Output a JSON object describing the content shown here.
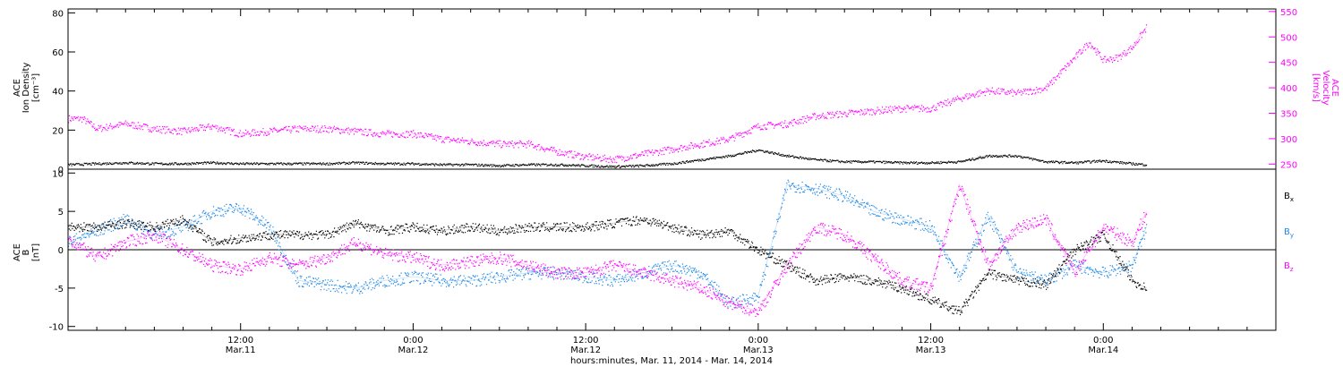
{
  "colors": {
    "density": "#000000",
    "velocity": "#ff00ff",
    "bx": "#000000",
    "by": "#1e88e5",
    "bz": "#ff00ff",
    "axis": "#000000"
  },
  "xaxis_label": "hours:minutes, Mar. 11, 2014 - Mar. 14, 2014",
  "time_ticks": [
    {
      "time": "12:00",
      "date": "Mar.11",
      "hours": 12
    },
    {
      "time": "0:00",
      "date": "Mar.12",
      "hours": 24
    },
    {
      "time": "12:00",
      "date": "Mar.12",
      "hours": 36
    },
    {
      "time": "0:00",
      "date": "Mar.13",
      "hours": 48
    },
    {
      "time": "12:00",
      "date": "Mar.13",
      "hours": 60
    },
    {
      "time": "0:00",
      "date": "Mar.14",
      "hours": 72
    }
  ],
  "chart_data": [
    {
      "type": "scatter",
      "panel": "plasma",
      "xlim": [
        0,
        84
      ],
      "x_units": "hours since Mar. 11, 2014 00:00",
      "left_axis": {
        "label_lines": [
          "ACE",
          "Ion Density",
          "[cm⁻³]"
        ],
        "ylim": [
          0,
          82
        ],
        "ticks": [
          0,
          20,
          40,
          60,
          80
        ]
      },
      "right_axis": {
        "label_lines": [
          "ACE",
          "Velocity",
          "[km/s]"
        ],
        "ylim": [
          240,
          555
        ],
        "ticks": [
          250,
          300,
          350,
          400,
          450,
          500,
          550
        ]
      },
      "series": [
        {
          "name": "Ion Density",
          "axis": "left",
          "x": [
            0,
            2,
            4,
            6,
            8,
            10,
            12,
            14,
            16,
            18,
            20,
            22,
            24,
            26,
            28,
            30,
            32,
            34,
            36,
            38,
            40,
            42,
            44,
            46,
            48,
            50,
            52,
            54,
            56,
            58,
            60,
            62,
            64,
            66,
            68,
            70,
            72,
            74,
            75
          ],
          "y": [
            2.5,
            3,
            3.5,
            3,
            3,
            3.5,
            3,
            3,
            3,
            3,
            3.5,
            3,
            3,
            2.5,
            2.5,
            2,
            2.5,
            2.5,
            2,
            1.5,
            2,
            3,
            5,
            7,
            10,
            7,
            5,
            4,
            4,
            3.5,
            3.5,
            4,
            7,
            7,
            4,
            3.5,
            4.5,
            3,
            2.5
          ]
        },
        {
          "name": "Velocity",
          "axis": "right",
          "x": [
            0,
            1,
            2,
            4,
            6,
            8,
            10,
            12,
            14,
            16,
            18,
            20,
            22,
            24,
            26,
            28,
            30,
            32,
            34,
            36,
            38,
            40,
            42,
            44,
            46,
            48,
            50,
            52,
            54,
            56,
            58,
            60,
            62,
            64,
            66,
            68,
            70,
            71,
            72,
            73,
            74,
            75
          ],
          "y": [
            340,
            340,
            320,
            330,
            320,
            315,
            325,
            310,
            315,
            320,
            320,
            315,
            310,
            310,
            300,
            295,
            290,
            290,
            275,
            265,
            260,
            270,
            280,
            290,
            300,
            325,
            330,
            345,
            350,
            355,
            360,
            360,
            380,
            395,
            390,
            400,
            460,
            490,
            455,
            460,
            480,
            520
          ]
        }
      ]
    },
    {
      "type": "scatter",
      "panel": "magnetic-field",
      "xlim": [
        0,
        84
      ],
      "x_units": "hours since Mar. 11, 2014 00:00",
      "left_axis": {
        "label_lines": [
          "ACE",
          "B",
          "[nT]"
        ],
        "ylim": [
          -10.5,
          10.5
        ],
        "ticks": [
          -10,
          -5,
          0,
          5,
          10
        ]
      },
      "zero_line": true,
      "legend_position": "right",
      "series": [
        {
          "name": "Bx",
          "sub": "x",
          "name_base": "B",
          "color_key": "bx",
          "x": [
            0,
            2,
            4,
            6,
            8,
            10,
            12,
            14,
            16,
            18,
            20,
            22,
            24,
            26,
            28,
            30,
            32,
            34,
            36,
            38,
            40,
            42,
            44,
            46,
            48,
            50,
            52,
            54,
            56,
            58,
            60,
            62,
            64,
            66,
            68,
            70,
            72,
            74,
            75
          ],
          "y": [
            3,
            3,
            3.5,
            3,
            4,
            1,
            1.5,
            2,
            2,
            2,
            3.5,
            2.5,
            3,
            2.5,
            3,
            2.5,
            3,
            3,
            3,
            3.5,
            4,
            3,
            2,
            2.5,
            0,
            -2,
            -4,
            -3.5,
            -4,
            -5,
            -6.5,
            -8,
            -3,
            -4,
            -4.5,
            0,
            2,
            -4,
            -5
          ]
        },
        {
          "name": "By",
          "sub": "y",
          "name_base": "B",
          "color_key": "by",
          "x": [
            0,
            2,
            4,
            6,
            8,
            10,
            12,
            14,
            16,
            18,
            20,
            22,
            24,
            26,
            28,
            30,
            32,
            34,
            36,
            38,
            40,
            42,
            44,
            46,
            48,
            50,
            52,
            54,
            56,
            58,
            60,
            62,
            64,
            66,
            68,
            70,
            72,
            74,
            75
          ],
          "y": [
            1,
            2.5,
            4,
            2,
            3,
            5,
            5.5,
            3,
            -4,
            -4.5,
            -5,
            -4,
            -3.5,
            -4,
            -4,
            -3.5,
            -3,
            -3,
            -3.5,
            -4,
            -3,
            -2,
            -3,
            -7,
            -6,
            8.5,
            8,
            7,
            5,
            4,
            3,
            -3.5,
            4.5,
            -3,
            -4,
            -2,
            -3,
            -2,
            3
          ]
        },
        {
          "name": "Bz",
          "sub": "z",
          "name_base": "B",
          "color_key": "bz",
          "x": [
            0,
            2,
            4,
            6,
            8,
            10,
            12,
            14,
            16,
            18,
            20,
            22,
            24,
            26,
            28,
            30,
            32,
            34,
            36,
            38,
            40,
            42,
            44,
            46,
            48,
            50,
            52,
            54,
            56,
            58,
            60,
            62,
            64,
            66,
            68,
            70,
            72,
            74,
            75
          ],
          "y": [
            1.5,
            -1,
            1,
            2,
            0,
            -2,
            -2.5,
            -1,
            -2,
            -1,
            1,
            -0.5,
            -1,
            -2,
            -1.5,
            -1,
            -2,
            -3,
            -3,
            -2,
            -3,
            -4,
            -5,
            -7,
            -8,
            -2,
            3,
            2,
            -1,
            -4,
            -5,
            8.5,
            -2,
            3,
            4,
            -3,
            3,
            1,
            5
          ]
        }
      ]
    }
  ]
}
